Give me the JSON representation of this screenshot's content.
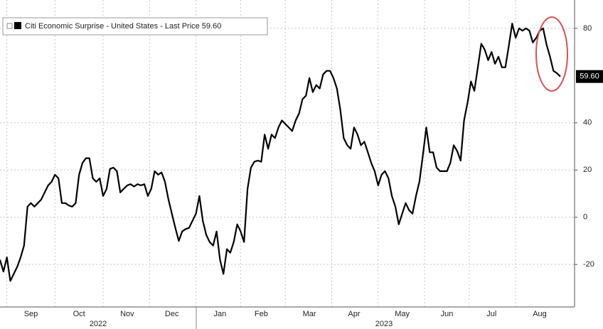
{
  "chart_data": {
    "type": "line",
    "categories": [
      null,
      null,
      null,
      null,
      null,
      null,
      null,
      null,
      null,
      "Sep",
      null,
      null,
      null,
      null,
      null,
      null,
      null,
      null,
      null,
      null,
      null,
      null,
      null,
      "Oct",
      null,
      null,
      null,
      null,
      null,
      null,
      null,
      null,
      null,
      null,
      null,
      null,
      null,
      "Nov",
      null,
      null,
      null,
      null,
      null,
      null,
      null,
      null,
      null,
      null,
      null,
      null,
      "Dec",
      null,
      null,
      null,
      null,
      null,
      null,
      null,
      null,
      null,
      null,
      null,
      null,
      null,
      "Jan",
      null,
      null,
      null,
      null,
      null,
      null,
      null,
      null,
      null,
      null,
      null,
      "Feb",
      null,
      null,
      null,
      null,
      null,
      null,
      null,
      null,
      null,
      null,
      null,
      null,
      null,
      "Mar",
      null,
      null,
      null,
      null,
      null,
      null,
      null,
      null,
      null,
      null,
      null,
      null,
      "Apr",
      null,
      null,
      null,
      null,
      null,
      null,
      null,
      null,
      null,
      null,
      null,
      null,
      null,
      "May",
      null,
      null,
      null,
      null,
      null,
      null,
      null,
      null,
      null,
      null,
      null,
      null,
      "Jun",
      null,
      null,
      null,
      null,
      null,
      null,
      null,
      null,
      null,
      null,
      null,
      null,
      "Jul",
      null,
      null,
      null,
      null,
      null,
      null,
      null,
      null,
      null,
      null,
      null,
      null,
      null,
      "Aug",
      null,
      null,
      null,
      null,
      null,
      null
    ],
    "year_labels": [
      "2022",
      "2023"
    ],
    "series": [
      {
        "name": "Citi Economic Surprise - United States - Last Price 59.60",
        "color": "#000000",
        "last_label": "59.60",
        "values": [
          -18,
          -23,
          -17,
          -27,
          -24,
          -21,
          -17,
          -12,
          4.5,
          6,
          4.5,
          6,
          7.5,
          10.5,
          13.5,
          15,
          18,
          16.5,
          6,
          6,
          5,
          4.5,
          6,
          18,
          23,
          25,
          25,
          16.5,
          15,
          16.5,
          9,
          12,
          20.5,
          21,
          19.5,
          10.5,
          12,
          13.5,
          14,
          13,
          14,
          13.5,
          14,
          9,
          12,
          19.5,
          18,
          19,
          15,
          7.5,
          1.5,
          -4.5,
          -10,
          -6,
          -5,
          -4.5,
          -1.5,
          1.5,
          9,
          -1.5,
          -7.5,
          -10.5,
          -12,
          -6,
          -18,
          -24,
          -13.5,
          -15,
          -10.5,
          -3,
          -6,
          -10.5,
          12,
          21,
          23.5,
          24,
          23.5,
          35,
          29,
          35,
          33.5,
          38,
          41,
          39.5,
          38,
          36.5,
          41,
          44,
          50,
          51.5,
          59,
          53,
          56,
          54.5,
          60.5,
          62,
          62,
          59,
          54.5,
          45.5,
          33.5,
          30.5,
          29,
          38,
          35,
          30.5,
          32,
          27.5,
          23,
          19.5,
          13.5,
          18,
          19.5,
          16.5,
          9,
          4.5,
          -3,
          1.5,
          6,
          3,
          1.5,
          9,
          15,
          26,
          38,
          27.5,
          27.5,
          21,
          19.5,
          19.5,
          19.5,
          23,
          30.5,
          28,
          24,
          41,
          48.5,
          57.5,
          53.5,
          63.5,
          73.5,
          71,
          66.5,
          70,
          65,
          68,
          63.5,
          63.5,
          72.5,
          82,
          76,
          80,
          79,
          80,
          79,
          74,
          76,
          79,
          80,
          73,
          68,
          62,
          61,
          59.6
        ]
      }
    ],
    "ylim": [
      -38,
      92
    ],
    "yticks": [
      -20,
      0,
      20,
      40,
      80
    ],
    "grid": true
  }
}
